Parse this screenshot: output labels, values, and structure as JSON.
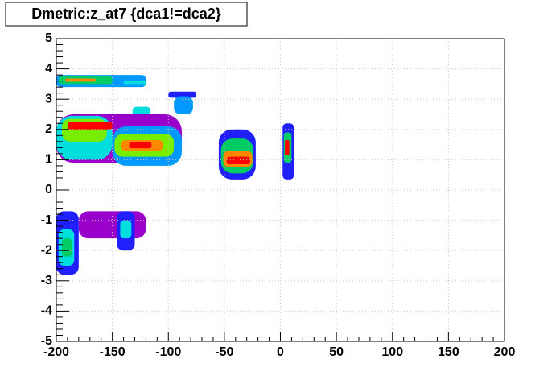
{
  "chart_data": {
    "type": "heatmap",
    "title": "Dmetric:z_at7 {dca1!=dca2}",
    "xlim": [
      -200,
      200
    ],
    "xticks": [
      -200,
      -150,
      -100,
      -50,
      0,
      50,
      100,
      150,
      200
    ],
    "ylim": [
      -5,
      5
    ],
    "yticks": [
      -5,
      -4,
      -3,
      -2,
      -1,
      0,
      1,
      2,
      3,
      4,
      5
    ],
    "grid": true,
    "palette": [
      "#9900cc",
      "#2020ff",
      "#0099ff",
      "#00dddd",
      "#00cc66",
      "#77ee00",
      "#ffee00",
      "#ff8800",
      "#ff0000"
    ],
    "cells": [
      {
        "x0": -200,
        "x1": -120,
        "y0": 3.4,
        "y1": 3.8,
        "z": 3
      },
      {
        "x0": -198,
        "x1": -150,
        "y0": 3.5,
        "y1": 3.75,
        "z": 5
      },
      {
        "x0": -192,
        "x1": -165,
        "y0": 3.58,
        "y1": 3.68,
        "z": 8
      },
      {
        "x0": -140,
        "x1": -120,
        "y0": 3.5,
        "y1": 3.62,
        "z": 4
      },
      {
        "x0": -132,
        "x1": -116,
        "y0": 2.4,
        "y1": 2.75,
        "z": 4
      },
      {
        "x0": -100,
        "x1": -75,
        "y0": 3.05,
        "y1": 3.25,
        "z": 2
      },
      {
        "x0": -95,
        "x1": -78,
        "y0": 2.5,
        "y1": 3.1,
        "z": 3
      },
      {
        "x0": -200,
        "x1": -88,
        "y0": 0.9,
        "y1": 2.5,
        "z": 1
      },
      {
        "x0": -200,
        "x1": -150,
        "y0": 1.0,
        "y1": 2.45,
        "z": 4
      },
      {
        "x0": -195,
        "x1": -155,
        "y0": 1.6,
        "y1": 2.35,
        "z": 6
      },
      {
        "x0": -190,
        "x1": -150,
        "y0": 2.0,
        "y1": 2.25,
        "z": 9
      },
      {
        "x0": -150,
        "x1": -88,
        "y0": 0.8,
        "y1": 2.1,
        "z": 3
      },
      {
        "x0": -148,
        "x1": -95,
        "y0": 1.1,
        "y1": 1.85,
        "z": 6
      },
      {
        "x0": -142,
        "x1": -105,
        "y0": 1.3,
        "y1": 1.65,
        "z": 8
      },
      {
        "x0": -135,
        "x1": -115,
        "y0": 1.38,
        "y1": 1.58,
        "z": 9
      },
      {
        "x0": -55,
        "x1": -22,
        "y0": 0.35,
        "y1": 2.0,
        "z": 2
      },
      {
        "x0": -53,
        "x1": -24,
        "y0": 0.55,
        "y1": 1.7,
        "z": 5
      },
      {
        "x0": -51,
        "x1": -25,
        "y0": 0.75,
        "y1": 1.3,
        "z": 8
      },
      {
        "x0": -48,
        "x1": -27,
        "y0": 0.85,
        "y1": 1.1,
        "z": 9
      },
      {
        "x0": 2,
        "x1": 12,
        "y0": 0.35,
        "y1": 2.2,
        "z": 2
      },
      {
        "x0": 3,
        "x1": 10,
        "y0": 0.9,
        "y1": 1.9,
        "z": 5
      },
      {
        "x0": 4,
        "x1": 8,
        "y0": 1.15,
        "y1": 1.65,
        "z": 9
      },
      {
        "x0": -180,
        "x1": -120,
        "y0": -1.6,
        "y1": -0.7,
        "z": 1
      },
      {
        "x0": -200,
        "x1": -180,
        "y0": -2.8,
        "y1": -0.7,
        "z": 2
      },
      {
        "x0": -198,
        "x1": -184,
        "y0": -2.5,
        "y1": -1.3,
        "z": 4
      },
      {
        "x0": -195,
        "x1": -186,
        "y0": -2.2,
        "y1": -1.6,
        "z": 5
      },
      {
        "x0": -146,
        "x1": -130,
        "y0": -2.0,
        "y1": -0.7,
        "z": 2
      },
      {
        "x0": -143,
        "x1": -133,
        "y0": -1.6,
        "y1": -1.0,
        "z": 4
      }
    ]
  }
}
